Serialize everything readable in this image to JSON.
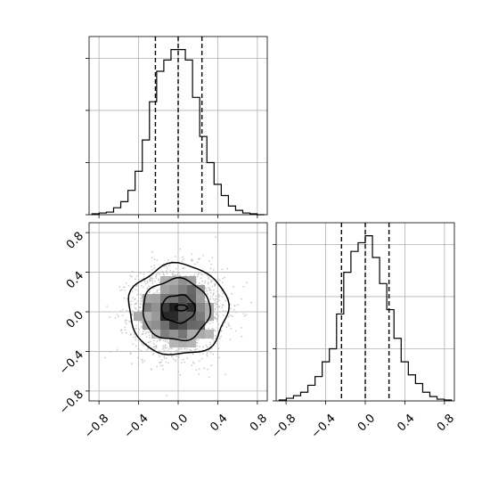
{
  "chart_data": {
    "type": "corner",
    "title": "",
    "panels": [
      {
        "panel": "marginal-x-histogram",
        "type": "histogram",
        "xlim": [
          -0.9,
          0.9
        ],
        "bin_width": 0.0725,
        "x_bin_left_edges": [
          -0.87,
          -0.7975,
          -0.725,
          -0.6525,
          -0.58,
          -0.5075,
          -0.435,
          -0.3625,
          -0.29,
          -0.2175,
          -0.145,
          -0.0725,
          0.0,
          0.0725,
          0.145,
          0.2175,
          0.29,
          0.3625,
          0.435,
          0.5075,
          0.58,
          0.6525,
          0.725,
          0.7975
        ],
        "counts": [
          1,
          2,
          3,
          8,
          15,
          28,
          50,
          86,
          130,
          165,
          178,
          190,
          190,
          178,
          135,
          90,
          60,
          35,
          22,
          10,
          5,
          2,
          1,
          0
        ],
        "ylim": [
          0,
          205
        ],
        "yticks": [
          0,
          60,
          120,
          180
        ],
        "yticklabels_visible": false,
        "quantiles": [
          -0.23,
          0.0,
          0.24
        ]
      },
      {
        "panel": "joint-2d-density",
        "type": "scatter",
        "xlim": [
          -0.9,
          0.9
        ],
        "ylim": [
          -0.9,
          0.9
        ],
        "xticks": [
          -0.8,
          -0.4,
          0.0,
          0.4,
          0.8
        ],
        "xticklabels": [
          "−0.8",
          "−0.4",
          "0.0",
          "0.4",
          "0.8"
        ],
        "yticks": [
          -0.8,
          -0.4,
          0.0,
          0.4,
          0.8
        ],
        "yticklabels": [
          "−0.8",
          "−0.4",
          "0.0",
          "0.4",
          "0.8"
        ],
        "distribution": {
          "center": [
            0.0,
            0.0
          ],
          "std": [
            0.23,
            0.22
          ],
          "n_points": 2200
        },
        "contour_levels": [
          {
            "center": [
              0.0,
              0.02
            ],
            "rx": 0.5,
            "ry": 0.46
          },
          {
            "center": [
              -0.02,
              0.02
            ],
            "rx": 0.34,
            "ry": 0.31
          },
          {
            "center": [
              0.0,
              0.03
            ],
            "rx": 0.17,
            "ry": 0.14
          },
          {
            "center": [
              0.03,
              0.04
            ],
            "rx": 0.06,
            "ry": 0.03
          }
        ]
      },
      {
        "panel": "marginal-y-histogram",
        "type": "histogram",
        "xlim": [
          -0.9,
          0.9
        ],
        "bin_width": 0.0725,
        "x_bin_left_edges": [
          -0.87,
          -0.7975,
          -0.725,
          -0.6525,
          -0.58,
          -0.5075,
          -0.435,
          -0.3625,
          -0.29,
          -0.2175,
          -0.145,
          -0.0725,
          0.0,
          0.0725,
          0.145,
          0.2175,
          0.29,
          0.3625,
          0.435,
          0.5075,
          0.58,
          0.6525,
          0.725,
          0.7975
        ],
        "counts": [
          1,
          3,
          6,
          10,
          18,
          28,
          45,
          60,
          100,
          148,
          172,
          182,
          190,
          165,
          135,
          105,
          72,
          45,
          30,
          20,
          10,
          5,
          2,
          1
        ],
        "ylim": [
          0,
          205
        ],
        "yticks": [
          0,
          60,
          120,
          180
        ],
        "yticklabels_visible": false,
        "quantiles": [
          -0.24,
          0.0,
          0.24
        ],
        "xticks": [
          -0.8,
          -0.4,
          0.0,
          0.4,
          0.8
        ],
        "xticklabels": [
          "−0.8",
          "−0.4",
          "0.0",
          "0.4",
          "0.8"
        ]
      }
    ],
    "grid": true,
    "colors": {
      "line": "#000000",
      "scatter": "#b8b8b8",
      "density_max": "#1e1e1e",
      "grid": "#b0b0b0"
    }
  }
}
